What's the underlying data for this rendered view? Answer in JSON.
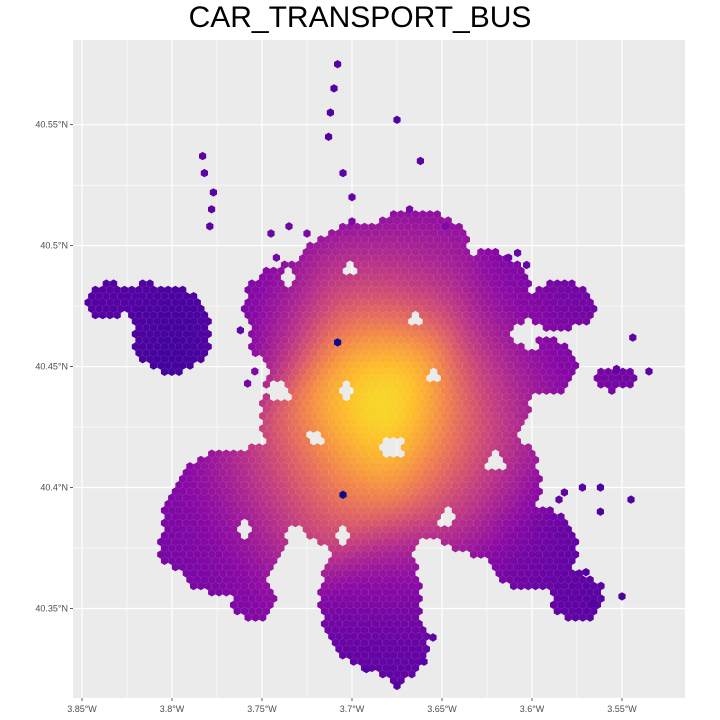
{
  "map": {
    "title": "CAR_TRANSPORT_BUS",
    "type": "hexbin-map",
    "panel_background": "#ebebeb",
    "grid_color": "#ffffff",
    "color_scale": "plasma",
    "legend": "none",
    "x_axis": {
      "ticks": [
        {
          "value": -3.85,
          "label": "3.85°W"
        },
        {
          "value": -3.8,
          "label": "3.8°W"
        },
        {
          "value": -3.75,
          "label": "3.75°W"
        },
        {
          "value": -3.7,
          "label": "3.7°W"
        },
        {
          "value": -3.65,
          "label": "3.65°W"
        },
        {
          "value": -3.6,
          "label": "3.6°W"
        },
        {
          "value": -3.55,
          "label": "3.55°W"
        }
      ]
    },
    "y_axis": {
      "ticks": [
        {
          "value": 40.35,
          "label": "40.35°N"
        },
        {
          "value": 40.4,
          "label": "40.4°N"
        },
        {
          "value": 40.45,
          "label": "40.45°N"
        },
        {
          "value": 40.5,
          "label": "40.5°N"
        },
        {
          "value": 40.55,
          "label": "40.55°N"
        }
      ]
    }
  },
  "chart_data": {
    "type": "heatmap",
    "title": "CAR_TRANSPORT_BUS",
    "xlim": [
      -3.855,
      -3.515
    ],
    "ylim": [
      40.313,
      40.585
    ],
    "grid": true,
    "regions": [
      {
        "lon": -3.68,
        "lat": 40.435,
        "intensity": 1.0
      },
      {
        "lon": -3.69,
        "lat": 40.455,
        "intensity": 0.85
      },
      {
        "lon": -3.7,
        "lat": 40.42,
        "intensity": 0.8
      },
      {
        "lon": -3.71,
        "lat": 40.4,
        "intensity": 0.6
      },
      {
        "lon": -3.73,
        "lat": 40.4,
        "intensity": 0.55
      },
      {
        "lon": -3.75,
        "lat": 40.39,
        "intensity": 0.4
      },
      {
        "lon": -3.69,
        "lat": 40.48,
        "intensity": 0.45
      },
      {
        "lon": -3.67,
        "lat": 40.49,
        "intensity": 0.35
      },
      {
        "lon": -3.65,
        "lat": 40.42,
        "intensity": 0.55
      },
      {
        "lon": -3.63,
        "lat": 40.4,
        "intensity": 0.35
      },
      {
        "lon": -3.62,
        "lat": 40.44,
        "intensity": 0.35
      },
      {
        "lon": -3.6,
        "lat": 40.37,
        "intensity": 0.2
      },
      {
        "lon": -3.68,
        "lat": 40.36,
        "intensity": 0.25
      },
      {
        "lon": -3.68,
        "lat": 40.34,
        "intensity": 0.15
      },
      {
        "lon": -3.78,
        "lat": 40.37,
        "intensity": 0.3
      },
      {
        "lon": -3.79,
        "lat": 40.46,
        "intensity": 0.02
      },
      {
        "lon": -3.83,
        "lat": 40.475,
        "intensity": 0.15
      },
      {
        "lon": -3.74,
        "lat": 40.47,
        "intensity": 0.3
      },
      {
        "lon": -3.6,
        "lat": 40.47,
        "intensity": 0.25
      },
      {
        "lon": -3.7,
        "lat": 40.54,
        "intensity": 0.2
      },
      {
        "lon": -3.78,
        "lat": 40.52,
        "intensity": 0.25
      },
      {
        "lon": -3.56,
        "lat": 40.38,
        "intensity": 0.15
      }
    ],
    "outliers": [
      {
        "lon": -3.708,
        "lat": 40.46,
        "intensity": -0.1
      },
      {
        "lon": -3.705,
        "lat": 40.397,
        "intensity": -0.05
      }
    ]
  }
}
